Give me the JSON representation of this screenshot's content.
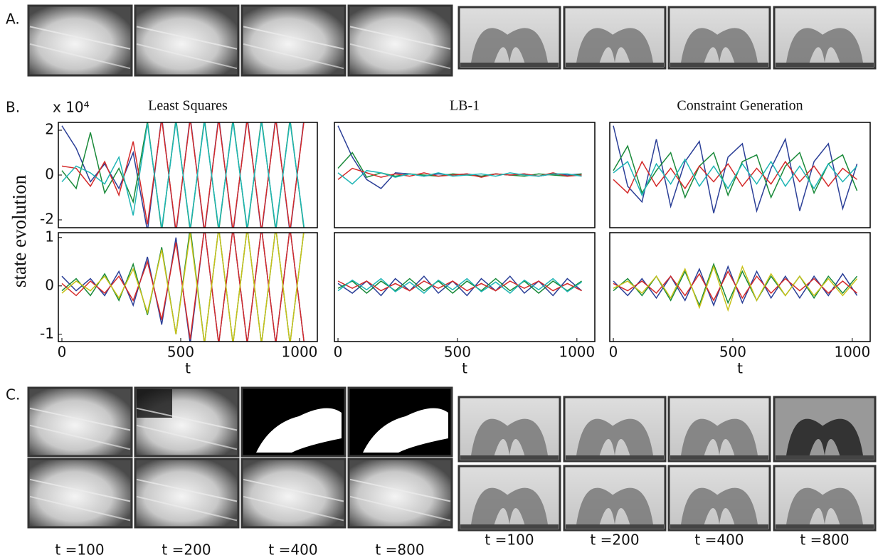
{
  "panel_labels": [
    "A.",
    "B.",
    "C."
  ],
  "y_label": "state evolution",
  "smoke_captions": [
    "t =100",
    "t =200",
    "t =400",
    "t =800"
  ],
  "fountain_captions": [
    "t =100",
    "t =200",
    "t =400",
    "t =800"
  ],
  "chart_data": [
    {
      "type": "line",
      "title": "Least Squares",
      "y_scale_label": "x 10⁴",
      "xlim": [
        -15,
        1075
      ],
      "ylim": [
        -2.35,
        2.35
      ],
      "yticks": [
        -2,
        0,
        2
      ],
      "x": [
        0,
        60,
        120,
        180,
        240,
        300,
        360,
        420,
        480,
        540,
        600,
        660,
        720,
        780,
        840,
        900,
        960,
        1020
      ],
      "series": [
        {
          "name": "s1",
          "color": "#2b3f97",
          "values": [
            2.2,
            1.2,
            -0.3,
            0.5,
            -0.6,
            1.0,
            -2.5,
            2.6,
            -2.6,
            2.6,
            -2.6,
            2.6,
            -2.6,
            2.6,
            -2.6,
            2.6,
            -2.6,
            2.6
          ]
        },
        {
          "name": "s2",
          "color": "#1a8a3a",
          "values": [
            0.2,
            -0.6,
            1.9,
            -0.8,
            0.3,
            -1.2,
            2.4,
            -2.5,
            2.5,
            -2.5,
            2.5,
            -2.5,
            2.5,
            -2.5,
            2.5,
            -2.5,
            2.5,
            -2.5
          ]
        },
        {
          "name": "s3",
          "color": "#d42a2a",
          "values": [
            0.4,
            0.3,
            -0.5,
            0.6,
            -0.9,
            1.5,
            -2.2,
            2.5,
            -2.5,
            2.5,
            -2.5,
            2.5,
            -2.5,
            2.5,
            -2.5,
            2.5,
            -2.5,
            2.5
          ]
        },
        {
          "name": "s4",
          "color": "#1fb5b5",
          "values": [
            -0.3,
            0.4,
            0.1,
            -0.4,
            0.8,
            -1.8,
            2.3,
            -2.4,
            2.4,
            -2.4,
            2.4,
            -2.4,
            2.4,
            -2.4,
            2.4,
            -2.4,
            2.4,
            -2.4
          ]
        }
      ]
    },
    {
      "type": "line",
      "title": "LB-1",
      "xlim": [
        -15,
        1075
      ],
      "ylim": [
        -2.35,
        2.35
      ],
      "x": [
        0,
        60,
        120,
        180,
        240,
        300,
        360,
        420,
        480,
        540,
        600,
        660,
        720,
        780,
        840,
        900,
        960,
        1020
      ],
      "series": [
        {
          "name": "s1",
          "color": "#2b3f97",
          "values": [
            2.2,
            0.8,
            -0.2,
            -0.6,
            0.1,
            0.05,
            -0.05,
            0.05,
            0,
            0.05,
            -0.05,
            0.05,
            0,
            0.05,
            -0.05,
            0.05,
            0,
            0.05
          ]
        },
        {
          "name": "s2",
          "color": "#1a8a3a",
          "values": [
            0.3,
            1.0,
            -0.1,
            0.1,
            -0.05,
            0.05,
            0,
            -0.05,
            0.05,
            0,
            -0.05,
            0.05,
            0,
            -0.05,
            0.05,
            0,
            -0.05,
            0.05
          ]
        },
        {
          "name": "s3",
          "color": "#d42a2a",
          "values": [
            -0.2,
            0.3,
            0.1,
            -0.1,
            0.05,
            -0.05,
            0.1,
            -0.05,
            0,
            0.05,
            -0.1,
            0.05,
            0,
            0.05,
            -0.05,
            0.1,
            -0.05,
            0
          ]
        },
        {
          "name": "s4",
          "color": "#1fb5b5",
          "values": [
            0.1,
            -0.4,
            0.2,
            0.1,
            -0.1,
            0.05,
            -0.05,
            0.1,
            -0.05,
            0,
            0.05,
            -0.05,
            0.1,
            0,
            -0.05,
            0.05,
            0.05,
            -0.05
          ]
        }
      ]
    },
    {
      "type": "line",
      "title": "Constraint Generation",
      "xlim": [
        -15,
        1075
      ],
      "ylim": [
        -2.35,
        2.35
      ],
      "x": [
        0,
        60,
        120,
        180,
        240,
        300,
        360,
        420,
        480,
        540,
        600,
        660,
        720,
        780,
        840,
        900,
        960,
        1020
      ],
      "series": [
        {
          "name": "s1",
          "color": "#2b3f97",
          "values": [
            2.2,
            -0.5,
            -1.2,
            1.6,
            -1.4,
            0.6,
            1.5,
            -1.7,
            0.8,
            1.4,
            -1.6,
            0.3,
            1.6,
            -1.6,
            0.6,
            1.4,
            -1.5,
            0.5
          ]
        },
        {
          "name": "s2",
          "color": "#1a8a3a",
          "values": [
            0.2,
            1.3,
            -0.8,
            0.2,
            1.0,
            -1.0,
            0.4,
            1.0,
            -0.9,
            0.6,
            0.9,
            -1.0,
            0.4,
            1.0,
            -0.8,
            0.5,
            0.9,
            -0.7
          ]
        },
        {
          "name": "s3",
          "color": "#d42a2a",
          "values": [
            -0.2,
            -0.8,
            0.6,
            -0.5,
            0.3,
            -0.6,
            0.4,
            -0.3,
            0.5,
            -0.5,
            0.3,
            -0.4,
            0.6,
            -0.3,
            0.4,
            -0.5,
            0.3,
            -0.2
          ]
        },
        {
          "name": "s4",
          "color": "#1fb5b5",
          "values": [
            0.1,
            0.6,
            -0.9,
            0.5,
            -0.4,
            0.7,
            -0.5,
            0.4,
            -0.6,
            0.5,
            -0.4,
            0.6,
            -0.5,
            0.4,
            -0.6,
            0.5,
            -0.3,
            0.4
          ]
        }
      ]
    },
    {
      "type": "line",
      "xlabel": "t",
      "xlim": [
        -15,
        1075
      ],
      "ylim": [
        -1.15,
        1.1
      ],
      "xticks": [
        0,
        500,
        1000
      ],
      "yticks": [
        -1,
        0,
        1
      ],
      "x": [
        0,
        60,
        120,
        180,
        240,
        300,
        360,
        420,
        480,
        540,
        600,
        660,
        720,
        780,
        840,
        900,
        960,
        1020
      ],
      "series": [
        {
          "name": "s1",
          "color": "#2b3f97",
          "values": [
            0.2,
            -0.1,
            0.15,
            -0.2,
            0.3,
            -0.4,
            0.6,
            -0.8,
            1.0,
            -1.2,
            1.2,
            -1.2,
            1.2,
            -1.2,
            1.2,
            -1.2,
            1.2,
            -1.2
          ]
        },
        {
          "name": "s2",
          "color": "#1a8a3a",
          "values": [
            -0.1,
            0.15,
            -0.2,
            0.25,
            -0.3,
            0.45,
            -0.6,
            0.8,
            -1.0,
            1.2,
            -1.2,
            1.2,
            -1.2,
            1.2,
            -1.2,
            1.2,
            -1.2,
            1.2
          ]
        },
        {
          "name": "s3",
          "color": "#d42a2a",
          "values": [
            0.05,
            -0.2,
            0.1,
            -0.15,
            0.2,
            -0.3,
            0.5,
            -0.7,
            0.9,
            -1.1,
            1.2,
            -1.2,
            1.2,
            -1.2,
            1.2,
            -1.2,
            1.2,
            -1.2
          ]
        },
        {
          "name": "s4",
          "color": "#c9c21a",
          "values": [
            -0.15,
            0.1,
            -0.1,
            0.2,
            -0.25,
            0.35,
            -0.55,
            0.75,
            -1.0,
            1.1,
            -1.2,
            1.2,
            -1.2,
            1.2,
            -1.2,
            1.2,
            -1.2,
            1.2
          ]
        }
      ]
    },
    {
      "type": "line",
      "xlabel": "t",
      "xlim": [
        -15,
        1075
      ],
      "ylim": [
        -1.15,
        1.1
      ],
      "xticks": [
        0,
        500,
        1000
      ],
      "x": [
        0,
        60,
        120,
        180,
        240,
        300,
        360,
        420,
        480,
        540,
        600,
        660,
        720,
        780,
        840,
        900,
        960,
        1020
      ],
      "series": [
        {
          "name": "s1",
          "color": "#2b3f97",
          "values": [
            0.05,
            -0.15,
            0.1,
            -0.2,
            0.15,
            -0.1,
            0.2,
            -0.15,
            0.1,
            -0.2,
            0.15,
            -0.1,
            0.2,
            -0.15,
            0.1,
            -0.2,
            0.15,
            -0.1
          ]
        },
        {
          "name": "s2",
          "color": "#1a8a3a",
          "values": [
            -0.05,
            0.1,
            -0.15,
            0.1,
            -0.1,
            0.15,
            -0.1,
            0.1,
            -0.15,
            0.1,
            -0.1,
            0.15,
            -0.1,
            0.1,
            -0.15,
            0.1,
            -0.1,
            0.1
          ]
        },
        {
          "name": "s3",
          "color": "#d42a2a",
          "values": [
            0.1,
            -0.05,
            0.1,
            -0.1,
            0.05,
            -0.1,
            0.1,
            -0.05,
            0.1,
            -0.1,
            0.05,
            -0.1,
            0.1,
            -0.05,
            0.1,
            -0.1,
            0.05,
            -0.1
          ]
        },
        {
          "name": "s4",
          "color": "#1fb5b5",
          "values": [
            -0.1,
            0.12,
            -0.08,
            0.15,
            -0.12,
            0.08,
            -0.15,
            0.12,
            -0.08,
            0.15,
            -0.12,
            0.08,
            -0.15,
            0.12,
            -0.08,
            0.15,
            -0.12,
            0.08
          ]
        }
      ]
    },
    {
      "type": "line",
      "xlabel": "t",
      "xlim": [
        -15,
        1075
      ],
      "ylim": [
        -1.15,
        1.1
      ],
      "xticks": [
        0,
        500,
        1000
      ],
      "x": [
        0,
        60,
        120,
        180,
        240,
        300,
        360,
        420,
        480,
        540,
        600,
        660,
        720,
        780,
        840,
        900,
        960,
        1020
      ],
      "series": [
        {
          "name": "s1",
          "color": "#2b3f97",
          "values": [
            0.1,
            -0.2,
            0.15,
            -0.25,
            0.2,
            -0.3,
            0.35,
            -0.4,
            0.4,
            -0.35,
            0.3,
            -0.25,
            0.2,
            -0.25,
            0.2,
            -0.2,
            0.25,
            -0.2
          ]
        },
        {
          "name": "s2",
          "color": "#1a8a3a",
          "values": [
            -0.1,
            0.15,
            -0.2,
            0.2,
            -0.3,
            0.3,
            -0.4,
            0.45,
            -0.35,
            0.3,
            -0.3,
            0.2,
            -0.2,
            0.2,
            -0.25,
            0.2,
            -0.15,
            0.2
          ]
        },
        {
          "name": "s3",
          "color": "#d42a2a",
          "values": [
            0.05,
            -0.1,
            0.1,
            -0.15,
            0.2,
            -0.2,
            0.25,
            -0.3,
            0.3,
            -0.25,
            0.2,
            -0.15,
            0.15,
            -0.1,
            0.15,
            -0.15,
            0.1,
            -0.15
          ]
        },
        {
          "name": "s4",
          "color": "#c9c21a",
          "values": [
            -0.05,
            0.1,
            -0.15,
            0.2,
            -0.25,
            0.35,
            -0.45,
            0.4,
            -0.5,
            0.4,
            -0.3,
            0.25,
            -0.2,
            0.2,
            -0.2,
            0.15,
            -0.2,
            0.15
          ]
        }
      ]
    }
  ]
}
